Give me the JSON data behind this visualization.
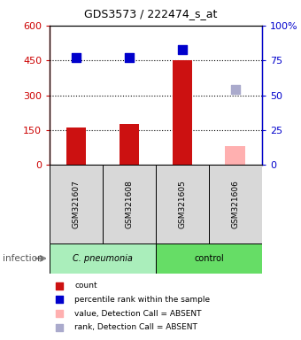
{
  "title": "GDS3573 / 222474_s_at",
  "samples": [
    "GSM321607",
    "GSM321608",
    "GSM321605",
    "GSM321606"
  ],
  "count_values": [
    160,
    175,
    450,
    null
  ],
  "count_absent": [
    null,
    null,
    null,
    80
  ],
  "percentile_values": [
    77,
    77,
    83,
    null
  ],
  "percentile_absent": [
    null,
    null,
    null,
    54
  ],
  "ylim_left": [
    0,
    600
  ],
  "ylim_right": [
    0,
    100
  ],
  "yticks_left": [
    0,
    150,
    300,
    450,
    600
  ],
  "yticks_right": [
    0,
    25,
    50,
    75,
    100
  ],
  "ytick_labels_right": [
    "0",
    "25",
    "50",
    "75",
    "100%"
  ],
  "group_label": "infection",
  "group1_label": "C. pneumonia",
  "group2_label": "control",
  "group_color": "#66dd66",
  "bar_color": "#cc1111",
  "bar_absent_color": "#ffb0b0",
  "dot_color": "#0000cc",
  "dot_absent_color": "#aaaacc",
  "left_color": "#cc0000",
  "right_color": "#0000cc",
  "sample_bg_color": "#d8d8d8",
  "bar_width": 0.38,
  "dot_size": 55,
  "legend": [
    {
      "color": "#cc1111",
      "label": "count"
    },
    {
      "color": "#0000cc",
      "label": "percentile rank within the sample"
    },
    {
      "color": "#ffb0b0",
      "label": "value, Detection Call = ABSENT"
    },
    {
      "color": "#aaaacc",
      "label": "rank, Detection Call = ABSENT"
    }
  ]
}
